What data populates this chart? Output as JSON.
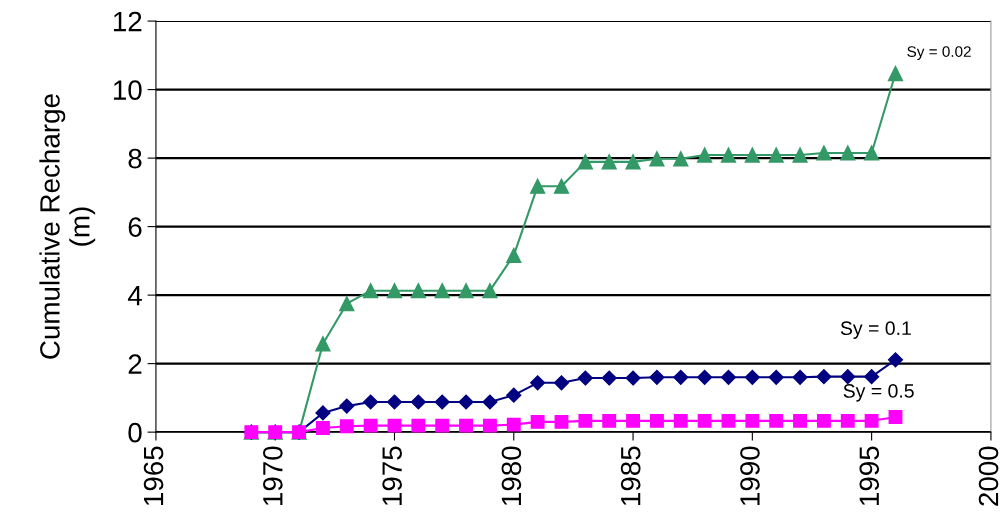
{
  "chart_data": {
    "type": "line",
    "ylabel": "Cumulative Recharge\n(m)",
    "x": [
      1969,
      1970,
      1971,
      1972,
      1973,
      1974,
      1975,
      1976,
      1977,
      1978,
      1979,
      1980,
      1981,
      1982,
      1983,
      1984,
      1985,
      1986,
      1987,
      1988,
      1989,
      1990,
      1991,
      1992,
      1993,
      1994,
      1995,
      1996
    ],
    "series": [
      {
        "name": "Sy = 0.02",
        "color": "#339966",
        "marker": "triangle",
        "values": [
          0,
          0,
          0,
          2.58,
          3.75,
          4.13,
          4.13,
          4.13,
          4.13,
          4.13,
          4.13,
          5.16,
          7.18,
          7.18,
          7.89,
          7.89,
          7.89,
          7.98,
          7.98,
          8.09,
          8.09,
          8.09,
          8.09,
          8.09,
          8.15,
          8.15,
          8.15,
          10.47
        ]
      },
      {
        "name": "Sy = 0.1",
        "color": "#000080",
        "marker": "diamond",
        "values": [
          0,
          0,
          0,
          0.56,
          0.76,
          0.88,
          0.88,
          0.88,
          0.88,
          0.88,
          0.88,
          1.08,
          1.44,
          1.44,
          1.58,
          1.58,
          1.58,
          1.6,
          1.6,
          1.6,
          1.6,
          1.6,
          1.6,
          1.6,
          1.62,
          1.62,
          1.62,
          2.11
        ]
      },
      {
        "name": "Sy = 0.5",
        "color": "#ff00ff",
        "marker": "square",
        "values": [
          0,
          0,
          0,
          0.12,
          0.17,
          0.19,
          0.19,
          0.19,
          0.19,
          0.19,
          0.19,
          0.22,
          0.3,
          0.3,
          0.33,
          0.33,
          0.33,
          0.33,
          0.33,
          0.33,
          0.33,
          0.33,
          0.33,
          0.33,
          0.33,
          0.33,
          0.33,
          0.44
        ]
      }
    ],
    "xlim": [
      1965,
      2000
    ],
    "xticks": [
      1965,
      1970,
      1975,
      1980,
      1985,
      1990,
      1995,
      2000
    ],
    "ylim": [
      0,
      12
    ],
    "yticks": [
      0,
      2,
      4,
      6,
      8,
      10,
      12
    ],
    "grid": "y",
    "legend": false,
    "line_style": "solid"
  }
}
